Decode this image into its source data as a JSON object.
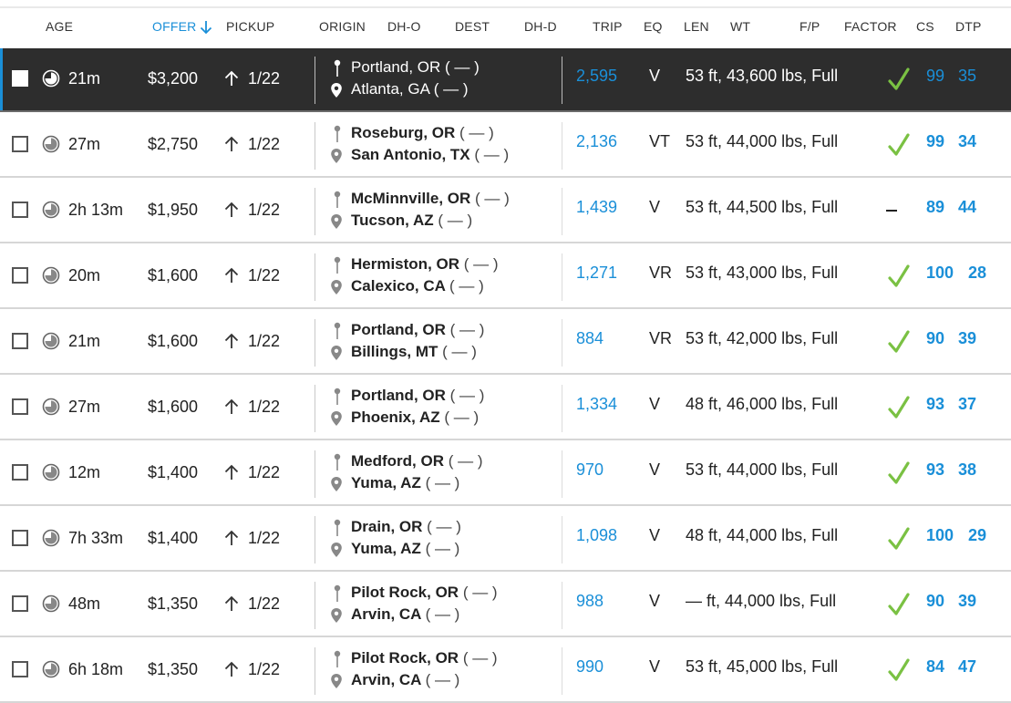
{
  "columns": {
    "age": "AGE",
    "offer": "OFFER",
    "pickup": "PICKUP",
    "origin": "ORIGIN",
    "dh_o": "DH-O",
    "dest": "DEST",
    "dh_d": "DH-D",
    "trip": "TRIP",
    "eq": "EQ",
    "len": "LEN",
    "wt": "WT",
    "fp": "F/P",
    "factor": "FACTOR",
    "cs": "CS",
    "dtp": "DTP"
  },
  "sort": {
    "column": "offer",
    "direction": "descending",
    "icon": "arrow-down-icon"
  },
  "colors": {
    "accent": "#1a8fd8",
    "check": "#7ac143",
    "selected_row": "#2d2d2d"
  },
  "rows": [
    {
      "age": "21m",
      "offer": "$3,200",
      "pickup": "1/22",
      "origin": "Portland, OR",
      "origin_dh": "( — )",
      "dest": "Atlanta, GA",
      "dest_dh": "( — )",
      "trip": "2,595",
      "eq": "V",
      "len_wt_fp": "53 ft, 43,600 lbs, Full",
      "factor": "check",
      "cs": "99",
      "dtp": "35",
      "selected": true
    },
    {
      "age": "27m",
      "offer": "$2,750",
      "pickup": "1/22",
      "origin": "Roseburg, OR",
      "origin_dh": "( — )",
      "dest": "San Antonio, TX",
      "dest_dh": "( — )",
      "trip": "2,136",
      "eq": "VT",
      "len_wt_fp": "53 ft, 44,000 lbs, Full",
      "factor": "check",
      "cs": "99",
      "dtp": "34"
    },
    {
      "age": "2h 13m",
      "offer": "$1,950",
      "pickup": "1/22",
      "origin": "McMinnville, OR",
      "origin_dh": "( — )",
      "dest": "Tucson, AZ",
      "dest_dh": "( — )",
      "trip": "1,439",
      "eq": "V",
      "len_wt_fp": "53 ft, 44,500 lbs, Full",
      "factor": "dash",
      "cs": "89",
      "dtp": "44"
    },
    {
      "age": "20m",
      "offer": "$1,600",
      "pickup": "1/22",
      "origin": "Hermiston, OR",
      "origin_dh": "( — )",
      "dest": "Calexico, CA",
      "dest_dh": "( — )",
      "trip": "1,271",
      "eq": "VR",
      "len_wt_fp": "53 ft, 43,000 lbs, Full",
      "factor": "check",
      "cs": "100",
      "dtp": "28"
    },
    {
      "age": "21m",
      "offer": "$1,600",
      "pickup": "1/22",
      "origin": "Portland, OR",
      "origin_dh": "( — )",
      "dest": "Billings, MT",
      "dest_dh": "( — )",
      "trip": "884",
      "eq": "VR",
      "len_wt_fp": "53 ft, 42,000 lbs, Full",
      "factor": "check",
      "cs": "90",
      "dtp": "39"
    },
    {
      "age": "27m",
      "offer": "$1,600",
      "pickup": "1/22",
      "origin": "Portland, OR",
      "origin_dh": "( — )",
      "dest": "Phoenix, AZ",
      "dest_dh": "( — )",
      "trip": "1,334",
      "eq": "V",
      "len_wt_fp": "48 ft, 46,000 lbs, Full",
      "factor": "check",
      "cs": "93",
      "dtp": "37"
    },
    {
      "age": "12m",
      "offer": "$1,400",
      "pickup": "1/22",
      "origin": "Medford, OR",
      "origin_dh": "( — )",
      "dest": "Yuma, AZ",
      "dest_dh": "( — )",
      "trip": "970",
      "eq": "V",
      "len_wt_fp": "53 ft, 44,000 lbs, Full",
      "factor": "check",
      "cs": "93",
      "dtp": "38"
    },
    {
      "age": "7h 33m",
      "offer": "$1,400",
      "pickup": "1/22",
      "origin": "Drain, OR",
      "origin_dh": "( — )",
      "dest": "Yuma, AZ",
      "dest_dh": "( — )",
      "trip": "1,098",
      "eq": "V",
      "len_wt_fp": "48 ft, 44,000 lbs, Full",
      "factor": "check",
      "cs": "100",
      "dtp": "29"
    },
    {
      "age": "48m",
      "offer": "$1,350",
      "pickup": "1/22",
      "origin": "Pilot Rock, OR",
      "origin_dh": "( — )",
      "dest": "Arvin, CA",
      "dest_dh": "( — )",
      "trip": "988",
      "eq": "V",
      "len_wt_fp": "— ft, 44,000 lbs, Full",
      "factor": "check",
      "cs": "90",
      "dtp": "39"
    },
    {
      "age": "6h 18m",
      "offer": "$1,350",
      "pickup": "1/22",
      "origin": "Pilot Rock, OR",
      "origin_dh": "( — )",
      "dest": "Arvin, CA",
      "dest_dh": "( — )",
      "trip": "990",
      "eq": "V",
      "len_wt_fp": "53 ft, 45,000 lbs, Full",
      "factor": "check",
      "cs": "84",
      "dtp": "47"
    }
  ]
}
